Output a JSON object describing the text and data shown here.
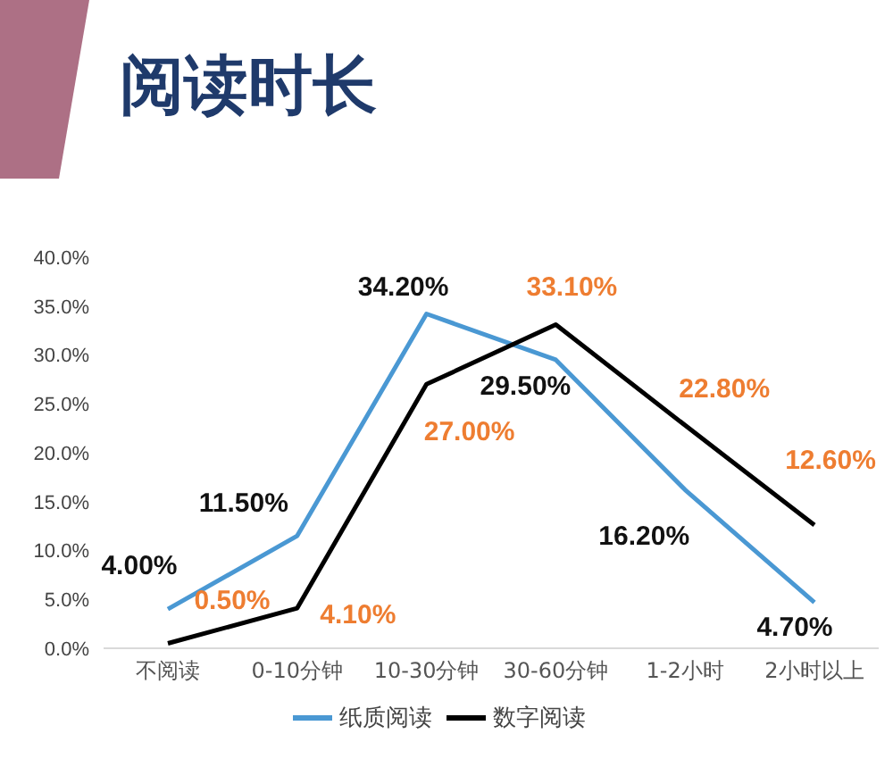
{
  "chart_data": {
    "type": "line",
    "title": "阅读时长",
    "categories": [
      "不阅读",
      "0-10分钟",
      "10-30分钟",
      "30-60分钟",
      "1-2小时",
      "2小时以上"
    ],
    "series": [
      {
        "name": "纸质阅读",
        "color": "#4a98d3",
        "values": [
          4.0,
          11.5,
          34.2,
          29.5,
          16.2,
          4.7
        ],
        "value_labels": [
          "4.00%",
          "11.50%",
          "34.20%",
          "29.50%",
          "16.20%",
          "4.70%"
        ]
      },
      {
        "name": "数字阅读",
        "color": "#000000",
        "values": [
          0.5,
          4.1,
          27.0,
          33.1,
          22.8,
          12.6
        ],
        "value_labels": [
          "0.50%",
          "4.10%",
          "27.00%",
          "33.10%",
          "22.80%",
          "12.60%"
        ]
      }
    ],
    "ylim": [
      0,
      40
    ],
    "yticks": [
      {
        "value": 0,
        "label": "0.0%"
      },
      {
        "value": 5,
        "label": "5.0%"
      },
      {
        "value": 10,
        "label": "10.0%"
      },
      {
        "value": 15,
        "label": "15.0%"
      },
      {
        "value": 20,
        "label": "20.0%"
      },
      {
        "value": 25,
        "label": "25.0%"
      },
      {
        "value": 30,
        "label": "30.0%"
      },
      {
        "value": 35,
        "label": "35.0%"
      },
      {
        "value": 40,
        "label": "40.0%"
      }
    ],
    "legend": "bottom",
    "marker": "none",
    "line_style": "solid"
  }
}
